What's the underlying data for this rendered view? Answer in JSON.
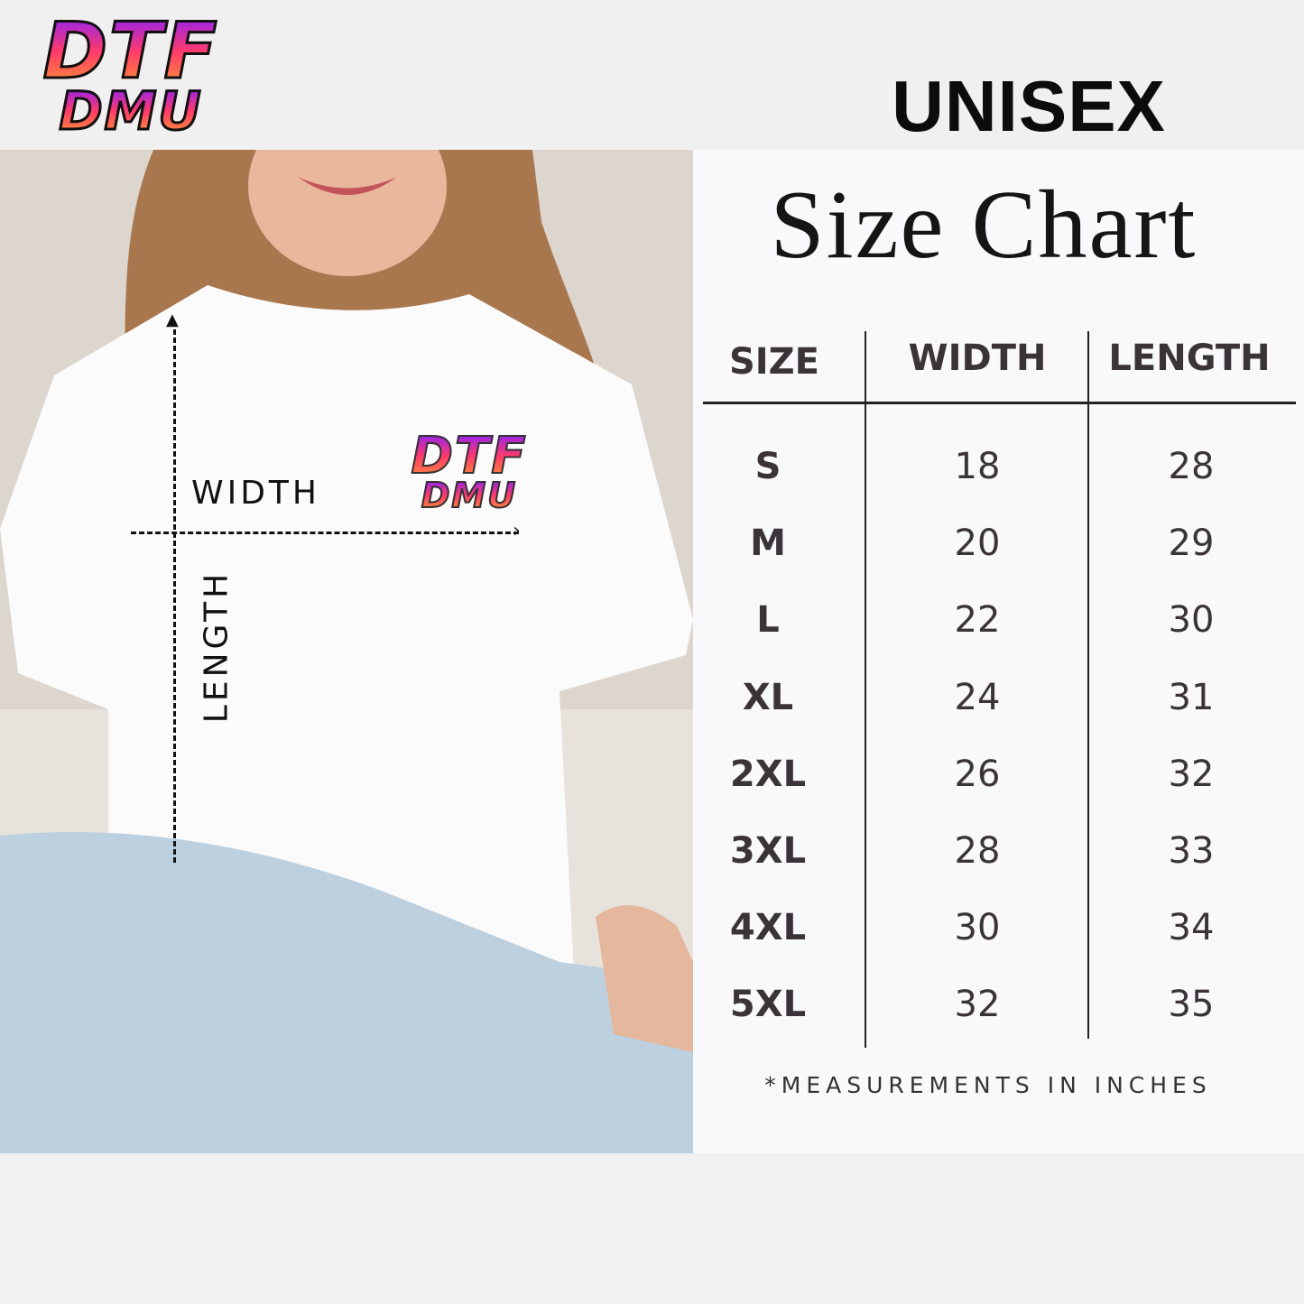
{
  "brand": {
    "logo_line1": "DTF",
    "logo_line2": "DMU"
  },
  "header": {
    "category": "UNISEX",
    "title": "Size Chart"
  },
  "photo": {
    "width_label": "WIDTH",
    "length_label": "LENGTH"
  },
  "table": {
    "columns": [
      "SIZE",
      "WIDTH",
      "LENGTH"
    ],
    "rows": [
      [
        "S",
        "18",
        "28"
      ],
      [
        "M",
        "20",
        "29"
      ],
      [
        "L",
        "22",
        "30"
      ],
      [
        "XL",
        "24",
        "31"
      ],
      [
        "2XL",
        "26",
        "32"
      ],
      [
        "3XL",
        "28",
        "33"
      ],
      [
        "4XL",
        "30",
        "34"
      ],
      [
        "5XL",
        "32",
        "35"
      ]
    ]
  },
  "footnote": "*MEASUREMENTS IN INCHES",
  "colors": {
    "text": "#3a3439",
    "panel": "#f9f9fb",
    "logo_gradient": [
      "#8a1fff",
      "#ff3a6a",
      "#ff9a30"
    ]
  }
}
